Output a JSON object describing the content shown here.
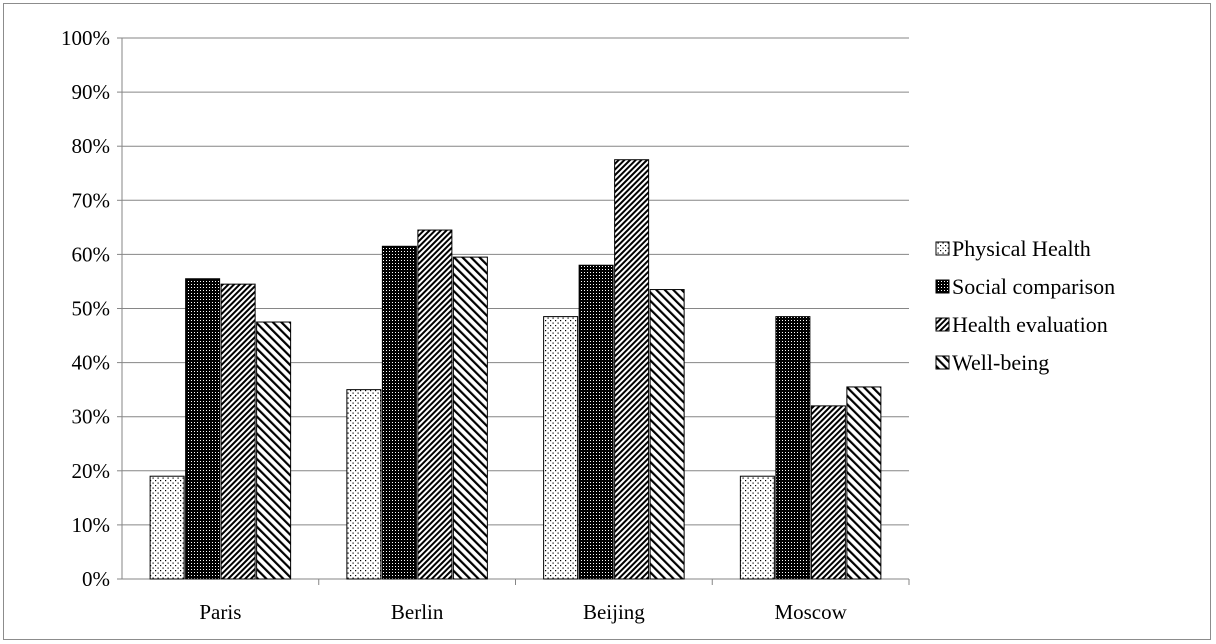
{
  "chart_data": {
    "type": "bar",
    "title": "",
    "xlabel": "",
    "ylabel": "",
    "categories": [
      "Paris",
      "Berlin",
      "Beijing",
      "Moscow"
    ],
    "ylim": [
      0,
      100
    ],
    "yticks": [
      "0%",
      "10%",
      "20%",
      "30%",
      "40%",
      "50%",
      "60%",
      "70%",
      "80%",
      "90%",
      "100%"
    ],
    "grid": true,
    "legend_position": "right",
    "series": [
      {
        "name": "Physical Health",
        "pattern": "sparse-dots",
        "values": [
          19,
          35,
          48.5,
          19
        ]
      },
      {
        "name": "Social comparison",
        "pattern": "dense-dots-black",
        "values": [
          55.5,
          61.5,
          58,
          48.5
        ]
      },
      {
        "name": "Health evaluation",
        "pattern": "dense-diagonal-hatch",
        "values": [
          54.5,
          64.5,
          77.5,
          32
        ]
      },
      {
        "name": "Well-being",
        "pattern": "wide-diagonal-hatch",
        "values": [
          47.5,
          59.5,
          53.5,
          35.5
        ]
      }
    ],
    "colors": {
      "bar_outline": "#000000",
      "gridline": "#868686",
      "axis": "#868686"
    }
  }
}
